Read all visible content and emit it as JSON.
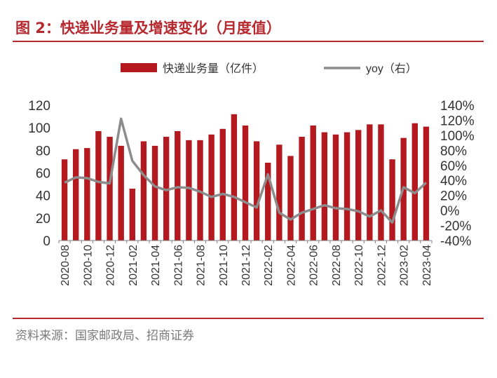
{
  "title": "图 2：快递业务量及增速变化（月度值）",
  "source": "资料来源：国家邮政局、招商证券",
  "colors": {
    "bar": "#b3191f",
    "line": "#8c8c8c",
    "accent": "#b5292f",
    "axis": "#333333"
  },
  "chart_data": {
    "type": "bar",
    "categories": [
      "2020-08",
      "2020-09",
      "2020-10",
      "2020-11",
      "2020-12",
      "2021-01",
      "2021-02",
      "2021-03",
      "2021-04",
      "2021-05",
      "2021-06",
      "2021-07",
      "2021-08",
      "2021-09",
      "2021-10",
      "2021-11",
      "2021-12",
      "2022-01",
      "2022-02",
      "2022-03",
      "2022-04",
      "2022-05",
      "2022-06",
      "2022-07",
      "2022-08",
      "2022-09",
      "2022-10",
      "2022-11",
      "2022-12",
      "2023-01",
      "2023-02",
      "2023-03",
      "2023-04"
    ],
    "x_tick_labels": [
      "2020-08",
      "2020-10",
      "2020-12",
      "2021-02",
      "2021-04",
      "2021-06",
      "2021-08",
      "2021-10",
      "2021-12",
      "2022-02",
      "2022-04",
      "2022-06",
      "2022-08",
      "2022-10",
      "2022-12",
      "2023-02",
      "2023-04"
    ],
    "series": [
      {
        "name": "快递业务量（亿件）",
        "type": "bar",
        "axis": "left",
        "values": [
          72,
          81,
          82,
          97,
          92,
          84,
          46,
          88,
          84,
          92,
          97,
          89,
          89,
          94,
          99,
          112,
          102,
          88,
          69,
          85,
          75,
          92,
          102,
          96,
          94,
          96,
          98,
          103,
          103,
          72,
          91,
          104,
          101
        ]
      },
      {
        "name": "yoy（右）",
        "type": "line",
        "axis": "right",
        "values": [
          37,
          44,
          43,
          38,
          36,
          122,
          66,
          47,
          32,
          27,
          31,
          30,
          25,
          18,
          22,
          18,
          11,
          4,
          48,
          -3,
          -12,
          -3,
          2,
          7,
          3,
          2,
          -1,
          -8,
          0,
          -16,
          31,
          23,
          37
        ]
      }
    ],
    "left_axis": {
      "ylim": [
        0,
        120
      ],
      "ticks": [
        0,
        20,
        40,
        60,
        80,
        100,
        120
      ]
    },
    "right_axis": {
      "ylim": [
        -40,
        140
      ],
      "ticks": [
        "-40%",
        "-20%",
        "0%",
        "20%",
        "40%",
        "60%",
        "80%",
        "100%",
        "120%",
        "140%"
      ]
    },
    "legend_position": "top",
    "grid": false
  }
}
